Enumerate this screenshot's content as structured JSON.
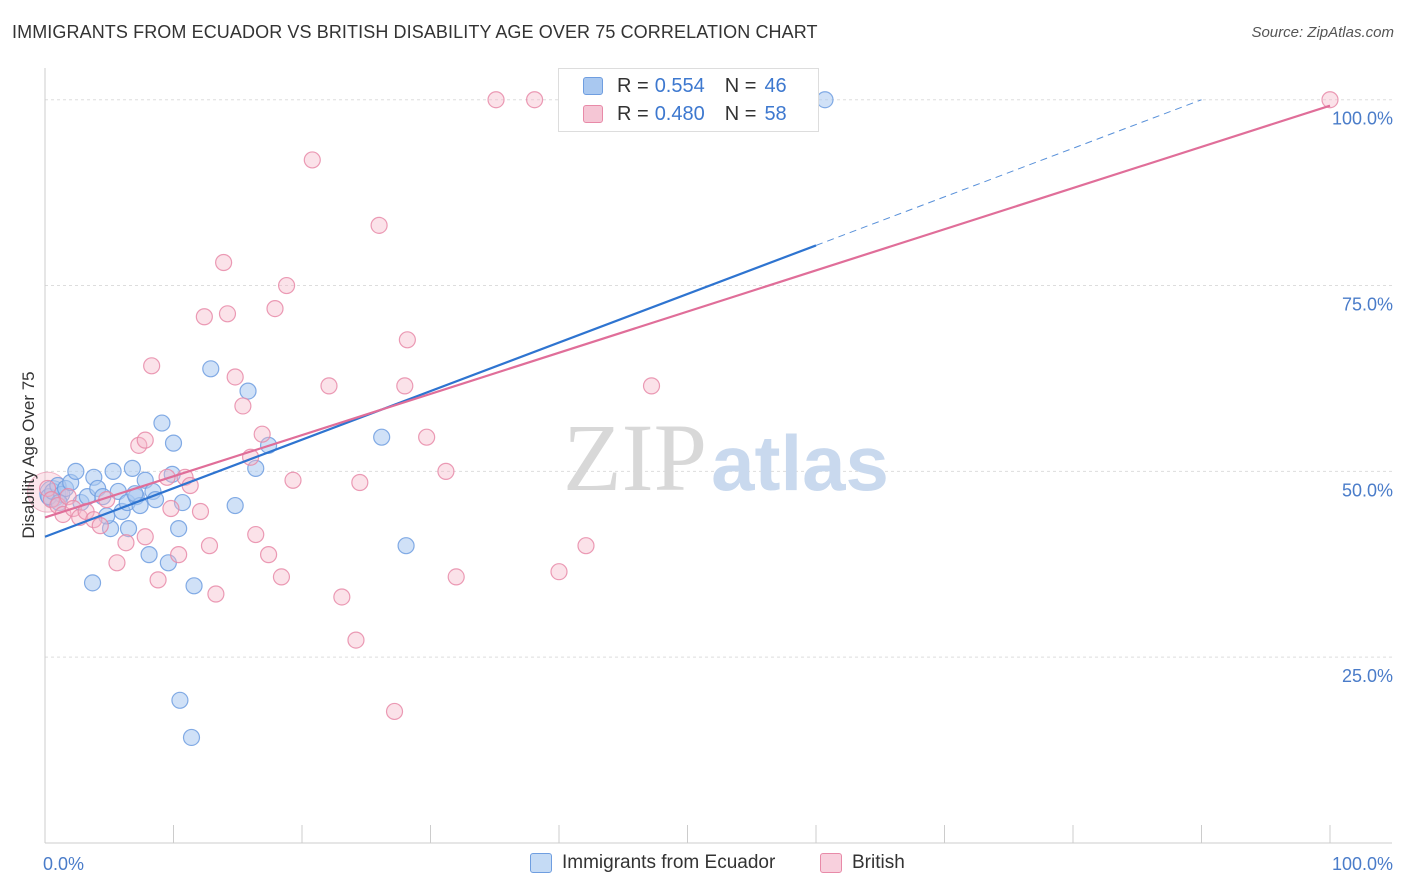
{
  "header": {
    "title": "IMMIGRANTS FROM ECUADOR VS BRITISH DISABILITY AGE OVER 75 CORRELATION CHART",
    "source": "Source: ZipAtlas.com"
  },
  "watermark": {
    "zip": "ZIP",
    "atlas": "atlas"
  },
  "legend": {
    "r_label": "R =",
    "n_label": "N =",
    "series": [
      {
        "r": "0.554",
        "n": "46"
      },
      {
        "r": "0.480",
        "n": "58"
      }
    ]
  },
  "colors": {
    "blue_fill": "#a9c8f0",
    "blue_stroke": "#6f9ee0",
    "blue_line": "#2e74d0",
    "pink_fill": "#f5b6c9",
    "pink_stroke": "#e88aa8",
    "pink_line": "#e06e99",
    "tick_label": "#4a7cc9",
    "grid": "#dddddd"
  },
  "chart_data": {
    "type": "scatter",
    "title": "IMMIGRANTS FROM ECUADOR VS BRITISH DISABILITY AGE OVER 75 CORRELATION CHART",
    "xlabel": "",
    "ylabel": "Disability Age Over 75",
    "xlim": [
      0,
      100
    ],
    "ylim": [
      0,
      104
    ],
    "x_tick_labels": [
      "0.0%",
      "100.0%"
    ],
    "y_ticks": [
      25,
      50,
      75,
      100
    ],
    "y_tick_labels": [
      "25.0%",
      "50.0%",
      "75.0%",
      "100.0%"
    ],
    "grid": true,
    "legend_position": "top-center",
    "series": [
      {
        "name": "Immigrants from Ecuador",
        "r": 0.554,
        "n": 46,
        "trend": {
          "x0": 0,
          "y0": 41.2,
          "x1": 60,
          "y1": 80.4,
          "dashed_to_x": 90,
          "dashed_to_y": 100
        },
        "points": [
          [
            0.3,
            46.6
          ],
          [
            0.6,
            47.3
          ],
          [
            1.0,
            48.1
          ],
          [
            1.3,
            46.9
          ],
          [
            1.6,
            47.7
          ],
          [
            2.0,
            48.5
          ],
          [
            2.4,
            50.0
          ],
          [
            2.8,
            45.8
          ],
          [
            3.3,
            46.6
          ],
          [
            3.8,
            49.2
          ],
          [
            4.1,
            47.7
          ],
          [
            4.5,
            46.6
          ],
          [
            5.1,
            42.3
          ],
          [
            5.3,
            50.0
          ],
          [
            5.7,
            47.3
          ],
          [
            6.0,
            44.6
          ],
          [
            6.4,
            45.8
          ],
          [
            6.5,
            42.3
          ],
          [
            6.8,
            50.4
          ],
          [
            7.1,
            46.6
          ],
          [
            7.4,
            45.4
          ],
          [
            7.8,
            48.8
          ],
          [
            8.1,
            38.8
          ],
          [
            8.4,
            47.3
          ],
          [
            8.6,
            46.2
          ],
          [
            9.1,
            56.5
          ],
          [
            9.6,
            37.7
          ],
          [
            9.9,
            49.6
          ],
          [
            10.0,
            53.8
          ],
          [
            10.4,
            42.3
          ],
          [
            10.7,
            45.8
          ],
          [
            11.6,
            34.6
          ],
          [
            12.9,
            63.8
          ],
          [
            14.8,
            45.4
          ],
          [
            15.8,
            60.8
          ],
          [
            16.4,
            50.4
          ],
          [
            17.4,
            53.5
          ],
          [
            26.2,
            54.6
          ],
          [
            28.1,
            40.0
          ],
          [
            60.7,
            100.0
          ],
          [
            3.7,
            35.0
          ],
          [
            10.5,
            19.2
          ],
          [
            11.4,
            14.2
          ],
          [
            1.1,
            45.8
          ],
          [
            4.8,
            44.0
          ],
          [
            7.0,
            47.0
          ]
        ]
      },
      {
        "name": "British",
        "r": 0.48,
        "n": 58,
        "trend": {
          "x0": 0,
          "y0": 43.8,
          "x1": 100,
          "y1": 99.2
        },
        "points": [
          [
            0.2,
            47.7
          ],
          [
            0.5,
            46.2
          ],
          [
            1.0,
            45.4
          ],
          [
            1.4,
            44.2
          ],
          [
            1.8,
            46.6
          ],
          [
            2.2,
            45.0
          ],
          [
            2.7,
            43.8
          ],
          [
            3.2,
            44.6
          ],
          [
            3.8,
            43.5
          ],
          [
            4.3,
            42.7
          ],
          [
            4.8,
            46.2
          ],
          [
            5.6,
            37.7
          ],
          [
            6.3,
            40.4
          ],
          [
            7.3,
            53.5
          ],
          [
            7.8,
            54.2
          ],
          [
            8.3,
            64.2
          ],
          [
            8.8,
            35.4
          ],
          [
            9.5,
            49.2
          ],
          [
            9.8,
            45.0
          ],
          [
            10.4,
            38.8
          ],
          [
            10.9,
            49.2
          ],
          [
            11.3,
            48.1
          ],
          [
            12.1,
            44.6
          ],
          [
            12.4,
            70.8
          ],
          [
            12.8,
            40.0
          ],
          [
            13.3,
            33.5
          ],
          [
            13.9,
            78.1
          ],
          [
            14.2,
            71.2
          ],
          [
            14.8,
            62.7
          ],
          [
            15.4,
            58.8
          ],
          [
            16.0,
            51.9
          ],
          [
            16.4,
            41.5
          ],
          [
            16.9,
            55.0
          ],
          [
            17.4,
            38.8
          ],
          [
            17.9,
            71.9
          ],
          [
            18.4,
            35.8
          ],
          [
            18.8,
            75.0
          ],
          [
            19.3,
            48.8
          ],
          [
            20.8,
            91.9
          ],
          [
            22.1,
            61.5
          ],
          [
            23.1,
            33.1
          ],
          [
            24.2,
            27.3
          ],
          [
            24.5,
            48.5
          ],
          [
            26.0,
            83.1
          ],
          [
            27.2,
            17.7
          ],
          [
            28.0,
            61.5
          ],
          [
            28.2,
            67.7
          ],
          [
            29.7,
            54.6
          ],
          [
            31.2,
            50.0
          ],
          [
            32.0,
            35.8
          ],
          [
            35.1,
            100.0
          ],
          [
            38.1,
            100.0
          ],
          [
            40.0,
            36.5
          ],
          [
            42.1,
            40.0
          ],
          [
            47.2,
            61.5
          ],
          [
            52.3,
            100.0
          ],
          [
            100.0,
            100.0
          ],
          [
            7.8,
            41.2
          ]
        ]
      }
    ]
  },
  "bottom_legend": {
    "items": [
      "Immigrants from Ecuador",
      "British"
    ]
  }
}
